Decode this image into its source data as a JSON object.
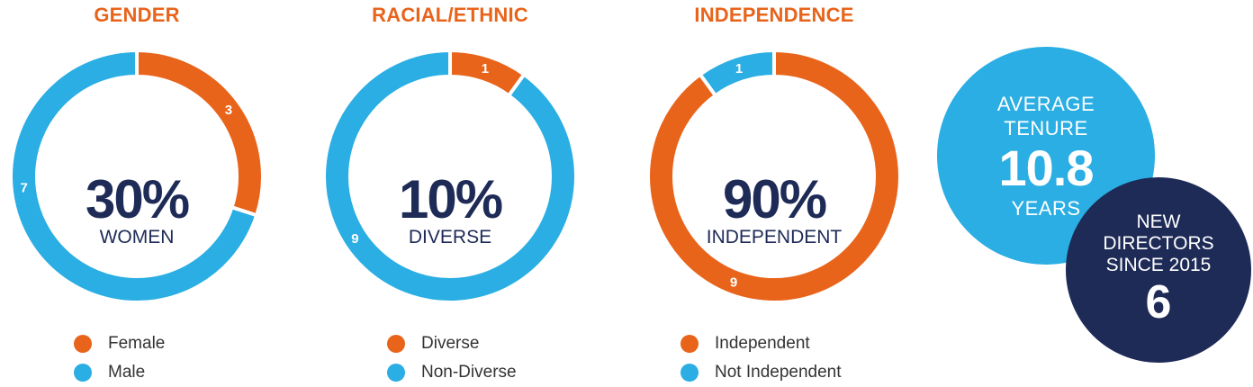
{
  "colors": {
    "orange": "#E8641B",
    "blue": "#2AAEE3",
    "navy": "#1E2B57",
    "white": "#FFFFFF"
  },
  "chart_data": [
    {
      "type": "pie",
      "title": "GENDER",
      "center_value": "30%",
      "center_label": "WOMEN",
      "series": [
        {
          "name": "Female",
          "value": 3,
          "label": "3",
          "color": "#E8641B"
        },
        {
          "name": "Male",
          "value": 7,
          "label": "7",
          "color": "#2AAEE3"
        }
      ]
    },
    {
      "type": "pie",
      "title": "RACIAL/ETHNIC",
      "center_value": "10%",
      "center_label": "DIVERSE",
      "series": [
        {
          "name": "Diverse",
          "value": 1,
          "label": "1",
          "color": "#E8641B"
        },
        {
          "name": "Non-Diverse",
          "value": 9,
          "label": "9",
          "color": "#2AAEE3"
        }
      ]
    },
    {
      "type": "pie",
      "title": "INDEPENDENCE",
      "center_value": "90%",
      "center_label": "INDEPENDENT",
      "series": [
        {
          "name": "Independent",
          "value": 9,
          "label": "9",
          "color": "#E8641B"
        },
        {
          "name": "Not Independent",
          "value": 1,
          "label": "1",
          "color": "#2AAEE3"
        }
      ]
    }
  ],
  "tenure": {
    "line1": "AVERAGE",
    "line2": "TENURE",
    "value": "10.8",
    "unit": "YEARS"
  },
  "new_directors": {
    "line1": "NEW",
    "line2": "DIRECTORS",
    "line3": "SINCE 2015",
    "value": "6"
  }
}
